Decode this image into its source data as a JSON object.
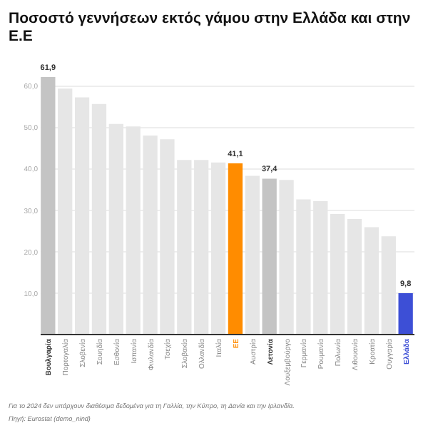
{
  "chart_data": {
    "type": "bar",
    "title": "Ποσοστό γεννήσεων εκτός γάμου στην Ελλάδα και στην Ε.Ε",
    "categories": [
      "Βουλγαρία",
      "Πορτογαλία",
      "Σλοβενία",
      "Σουηδία",
      "Εσθονία",
      "Ισπανία",
      "Φινλανδία",
      "Τσεχία",
      "Σλοβακία",
      "Ολλανδία",
      "Ιταλία",
      "ΕΕ",
      "Αυστρία",
      "Λετονία",
      "Λουξεμβούργο",
      "Γερμανία",
      "Ρουμανία",
      "Πολωνία",
      "Λιθουανία",
      "Κροατία",
      "Ουγγαρία",
      "Ελλάδα"
    ],
    "values": [
      61.9,
      59.1,
      57.0,
      55.4,
      50.6,
      50.0,
      47.8,
      46.9,
      41.9,
      41.9,
      41.3,
      41.1,
      38.1,
      37.4,
      37.1,
      32.4,
      32.0,
      28.9,
      27.7,
      25.7,
      23.5,
      9.8
    ],
    "colors": [
      "#c4c4c4",
      "#e6e6e6",
      "#e6e6e6",
      "#e6e6e6",
      "#e6e6e6",
      "#e6e6e6",
      "#e6e6e6",
      "#e6e6e6",
      "#e6e6e6",
      "#e6e6e6",
      "#e6e6e6",
      "#ff8c00",
      "#e6e6e6",
      "#c4c4c4",
      "#e6e6e6",
      "#e6e6e6",
      "#e6e6e6",
      "#e6e6e6",
      "#e6e6e6",
      "#e6e6e6",
      "#e6e6e6",
      "#3d4fd6"
    ],
    "value_labels": [
      "61,9",
      null,
      null,
      null,
      null,
      null,
      null,
      null,
      null,
      null,
      null,
      "41,1",
      null,
      "37,4",
      null,
      null,
      null,
      null,
      null,
      null,
      null,
      "9,8"
    ],
    "ylim": [
      0,
      61.9
    ],
    "yticks": [
      {
        "value": 0,
        "label": null
      },
      {
        "value": 10,
        "label": "10,0"
      },
      {
        "value": 20,
        "label": "20,0"
      },
      {
        "value": 30,
        "label": "30,0"
      },
      {
        "value": 40,
        "label": "40,0"
      },
      {
        "value": 50,
        "label": "50,0"
      },
      {
        "value": 60,
        "label": "60,0"
      }
    ],
    "grid": "y",
    "annotations": [
      "Για το 2024 δεν υπάρχουν διαθέσιμα δεδομένα για τη Γαλλία, την Κύπρο, τη Δανία και την Ιρλανδία.",
      "Πηγή: Eurostat (demo_nind)"
    ]
  }
}
